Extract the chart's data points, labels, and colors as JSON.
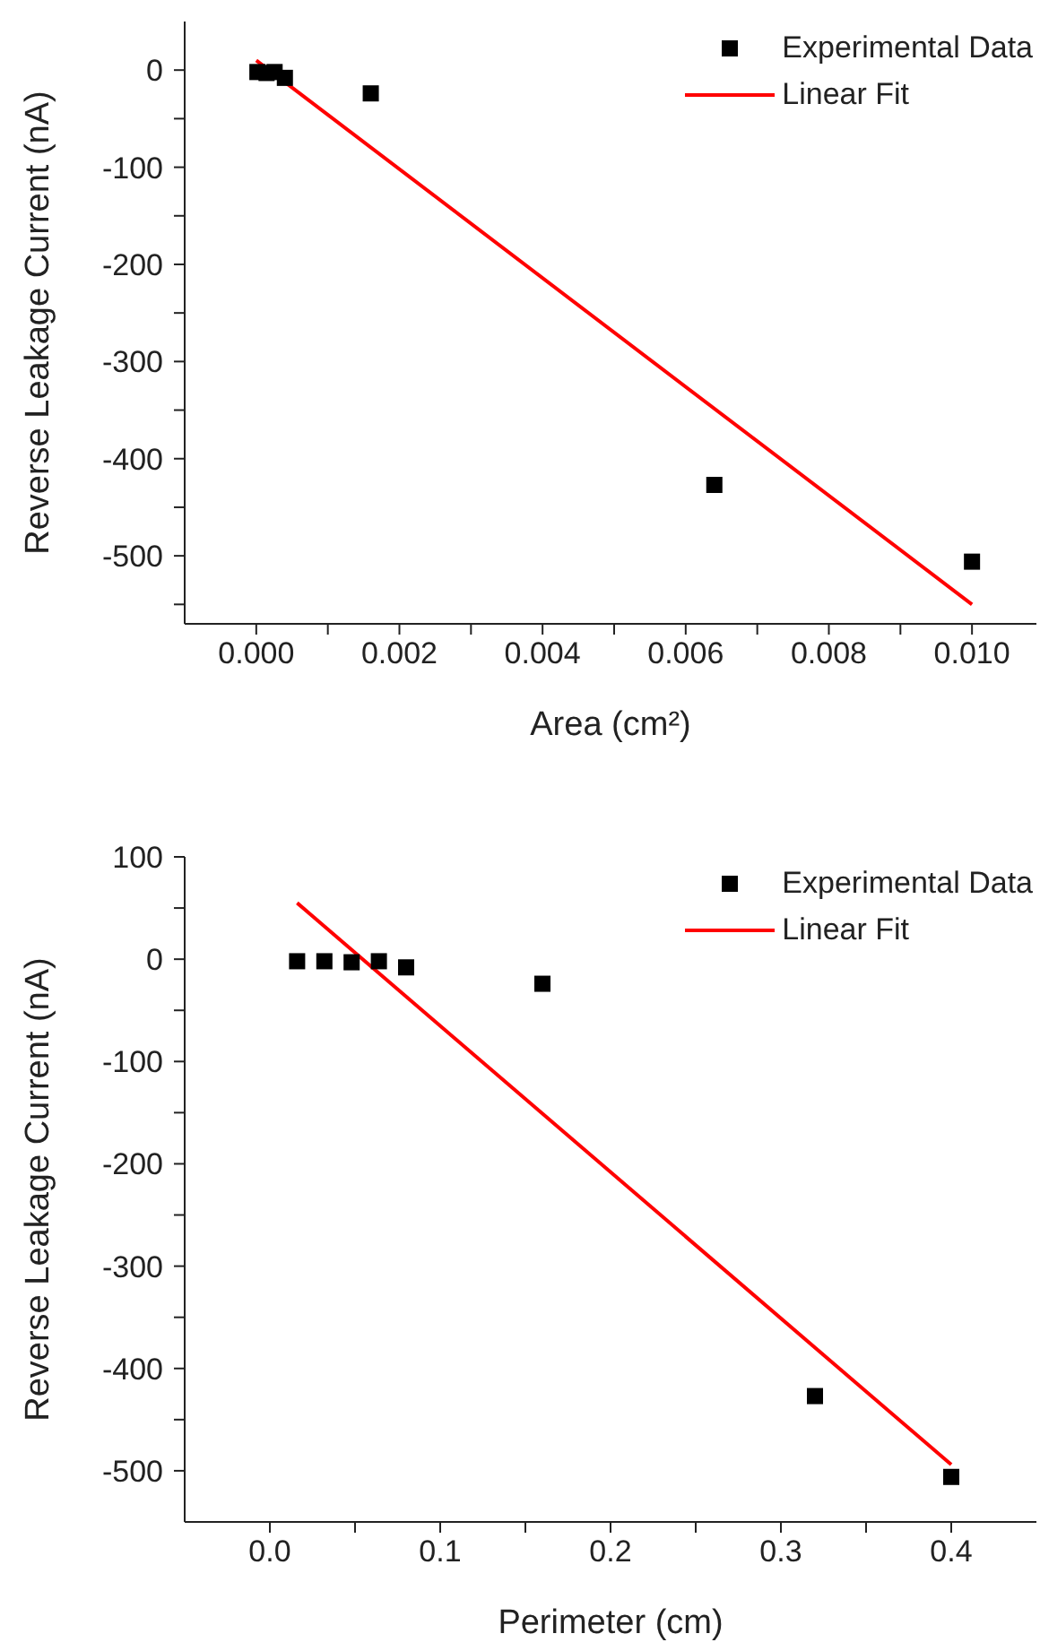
{
  "chart_data": [
    {
      "type": "scatter",
      "xlabel": "Area (cm²)",
      "ylabel": "Reverse Leakage Current (nA)",
      "xlim": [
        -0.001,
        0.0109
      ],
      "ylim": [
        -570,
        50
      ],
      "xticks": [
        {
          "value": 0,
          "label": "0.000"
        },
        {
          "value": 0.001,
          "label": null
        },
        {
          "value": 0.002,
          "label": "0.002"
        },
        {
          "value": 0.003,
          "label": null
        },
        {
          "value": 0.004,
          "label": "0.004"
        },
        {
          "value": 0.005,
          "label": null
        },
        {
          "value": 0.006,
          "label": "0.006"
        },
        {
          "value": 0.007,
          "label": null
        },
        {
          "value": 0.008,
          "label": "0.008"
        },
        {
          "value": 0.009,
          "label": null
        },
        {
          "value": 0.01,
          "label": "0.010"
        }
      ],
      "yticks": [
        {
          "value": -550,
          "label": null
        },
        -500,
        {
          "value": -450,
          "label": null
        },
        -400,
        {
          "value": -350,
          "label": null
        },
        -300,
        {
          "value": -250,
          "label": null
        },
        -200,
        {
          "value": -150,
          "label": null
        },
        -100,
        {
          "value": -50,
          "label": null
        },
        0
      ],
      "legend": "top right",
      "grid": false,
      "series": [
        {
          "name": "Experimental Data",
          "marker": "square",
          "color": "#000000",
          "x": [
            1.6e-05,
            0.000144,
            0.000256,
            0.0004,
            0.0016,
            0.0064,
            0.01
          ],
          "values": [
            -2,
            -3,
            -2,
            -8,
            -24,
            -427,
            -506
          ]
        },
        {
          "name": "Linear Fit",
          "type": "line",
          "marker": "none",
          "line_style": "solid",
          "color": "#ff0000",
          "x": [
            0,
            0.01
          ],
          "values": [
            10,
            -550
          ]
        }
      ]
    },
    {
      "type": "scatter",
      "xlabel": "Perimeter (cm)",
      "ylabel": "Reverse Leakage Current (nA)",
      "xlim": [
        -0.05,
        0.45
      ],
      "ylim": [
        -550,
        100
      ],
      "xticks": [
        {
          "value": 0,
          "label": "0.0"
        },
        {
          "value": 0.05,
          "label": null
        },
        {
          "value": 0.1,
          "label": "0.1"
        },
        {
          "value": 0.15,
          "label": null
        },
        {
          "value": 0.2,
          "label": "0.2"
        },
        {
          "value": 0.25,
          "label": null
        },
        {
          "value": 0.3,
          "label": "0.3"
        },
        {
          "value": 0.35,
          "label": null
        },
        {
          "value": 0.4,
          "label": "0.4"
        }
      ],
      "yticks": [
        -500,
        {
          "value": -450,
          "label": null
        },
        -400,
        {
          "value": -350,
          "label": null
        },
        -300,
        {
          "value": -250,
          "label": null
        },
        -200,
        {
          "value": -150,
          "label": null
        },
        -100,
        {
          "value": -50,
          "label": null
        },
        0,
        {
          "value": 50,
          "label": null
        },
        100
      ],
      "legend": "top right",
      "grid": false,
      "series": [
        {
          "name": "Experimental Data",
          "marker": "square",
          "color": "#000000",
          "x": [
            0.016,
            0.032,
            0.048,
            0.064,
            0.08,
            0.16,
            0.32,
            0.4
          ],
          "values": [
            -2,
            -2,
            -3,
            -2,
            -8,
            -24,
            -427,
            -506
          ]
        },
        {
          "name": "Linear Fit",
          "type": "line",
          "marker": "none",
          "line_style": "solid",
          "color": "#ff0000",
          "x": [
            0.016,
            0.4
          ],
          "values": [
            55,
            -494
          ]
        }
      ]
    }
  ]
}
